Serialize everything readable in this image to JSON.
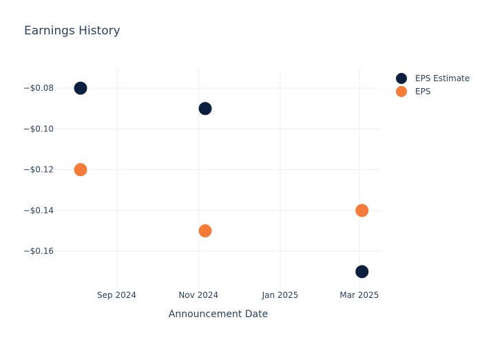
{
  "chart_data": {
    "type": "scatter",
    "title": "Earnings History",
    "xlabel": "Announcement Date",
    "ylabel": "",
    "x_axis": {
      "type": "date",
      "range": [
        "2024-07-17",
        "2025-03-17"
      ],
      "ticks": [
        {
          "date": "2024-09-01",
          "label": "Sep 2024"
        },
        {
          "date": "2024-11-01",
          "label": "Nov 2024"
        },
        {
          "date": "2025-01-01",
          "label": "Jan 2025"
        },
        {
          "date": "2025-03-01",
          "label": "Mar 2025"
        }
      ]
    },
    "y_axis": {
      "range": [
        -0.1785,
        -0.0705
      ],
      "ticks": [
        {
          "value": -0.08,
          "label": "−$0.08"
        },
        {
          "value": -0.1,
          "label": "−$0.10"
        },
        {
          "value": -0.12,
          "label": "−$0.12"
        },
        {
          "value": -0.14,
          "label": "−$0.14"
        },
        {
          "value": -0.16,
          "label": "−$0.16"
        }
      ]
    },
    "grid": true,
    "legend_position": "top-right",
    "series": [
      {
        "name": "EPS Estimate",
        "color": "#0b1f3f",
        "points": [
          {
            "x": "2024-08-05",
            "y": -0.08
          },
          {
            "x": "2024-11-06",
            "y": -0.09
          },
          {
            "x": "2025-03-03",
            "y": -0.17
          }
        ]
      },
      {
        "name": "EPS",
        "color": "#f47c38",
        "points": [
          {
            "x": "2024-08-05",
            "y": -0.12
          },
          {
            "x": "2024-11-06",
            "y": -0.15
          },
          {
            "x": "2025-03-03",
            "y": -0.14
          }
        ]
      }
    ]
  }
}
